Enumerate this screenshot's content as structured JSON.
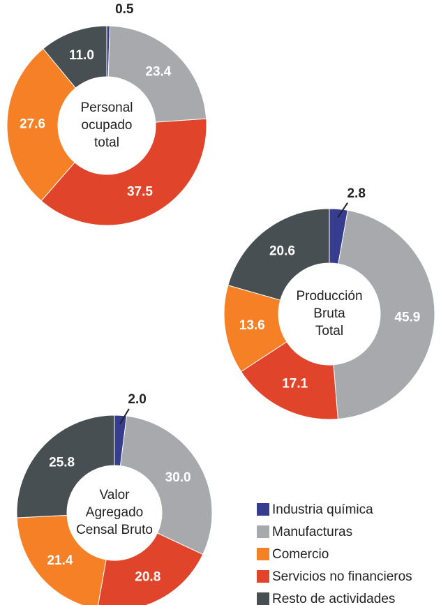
{
  "categories": [
    "Industria química",
    "Manufacturas",
    "Servicios no financieros",
    "Comercio",
    "Resto de actividades"
  ],
  "colors": [
    "#363d8f",
    "#a7a9ac",
    "#e0442a",
    "#f58025",
    "#474f52"
  ],
  "legend_order": [
    0,
    1,
    3,
    2,
    4
  ],
  "chart_data": [
    {
      "type": "pie",
      "center_label": [
        "Personal",
        "ocupado",
        "total"
      ],
      "values": [
        0.5,
        23.4,
        37.5,
        27.6,
        11.0
      ],
      "value_labels": [
        "0.5",
        "23.4",
        "37.5",
        "27.6",
        "11.0"
      ]
    },
    {
      "type": "pie",
      "center_label": [
        "Producción",
        "Bruta",
        "Total"
      ],
      "values": [
        2.8,
        45.9,
        17.1,
        13.6,
        20.6
      ],
      "value_labels": [
        "2.8",
        "45.9",
        "17.1",
        "13.6",
        "20.6"
      ]
    },
    {
      "type": "pie",
      "center_label": [
        "Valor",
        "Agregado",
        "Censal Bruto"
      ],
      "values": [
        2.0,
        30.0,
        20.8,
        21.4,
        25.8
      ],
      "value_labels": [
        "2.0",
        "30.0",
        "20.8",
        "21.4",
        "25.8"
      ]
    }
  ]
}
